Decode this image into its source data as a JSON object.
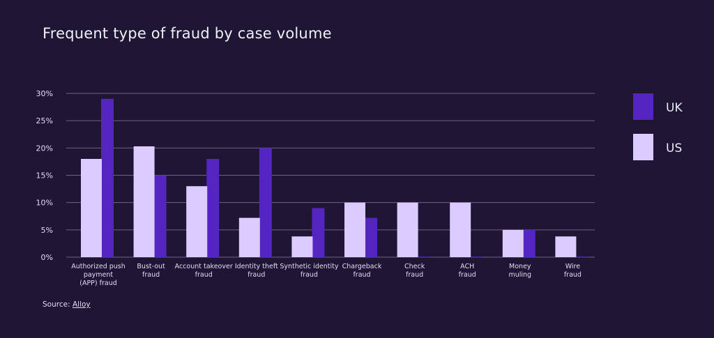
{
  "chart_data": {
    "type": "bar",
    "title": "Frequent type of fraud by case volume",
    "categories": [
      [
        "Authorized push",
        "payment",
        "(APP) fraud"
      ],
      [
        "Bust-out",
        "fraud"
      ],
      [
        "Account takeover",
        "fraud"
      ],
      [
        "Identity theft",
        "fraud"
      ],
      [
        "Synthetic identity",
        "fraud"
      ],
      [
        "Chargeback",
        "fraud"
      ],
      [
        "Check",
        "fraud"
      ],
      [
        "ACH",
        "fraud"
      ],
      [
        "Money",
        "muling"
      ],
      [
        "Wire",
        "fraud"
      ]
    ],
    "series": [
      {
        "name": "UK",
        "color": "#5425c0",
        "values": [
          29,
          15,
          18,
          20,
          9,
          7.2,
          0.1,
          0.1,
          5,
          0.1
        ]
      },
      {
        "name": "US",
        "color": "#dccbff",
        "values": [
          18,
          20.3,
          13,
          7.2,
          3.8,
          10,
          10,
          10,
          5,
          3.8
        ]
      }
    ],
    "ylim": [
      0,
      30
    ],
    "yticks": [
      "0%",
      "5%",
      "10%",
      "15%",
      "20%",
      "25%",
      "30%"
    ],
    "ytick_values": [
      0,
      5,
      10,
      15,
      20,
      25,
      30
    ],
    "grid": true,
    "legend_position": "right"
  },
  "source": {
    "label": "Source:",
    "link": "Alloy"
  }
}
